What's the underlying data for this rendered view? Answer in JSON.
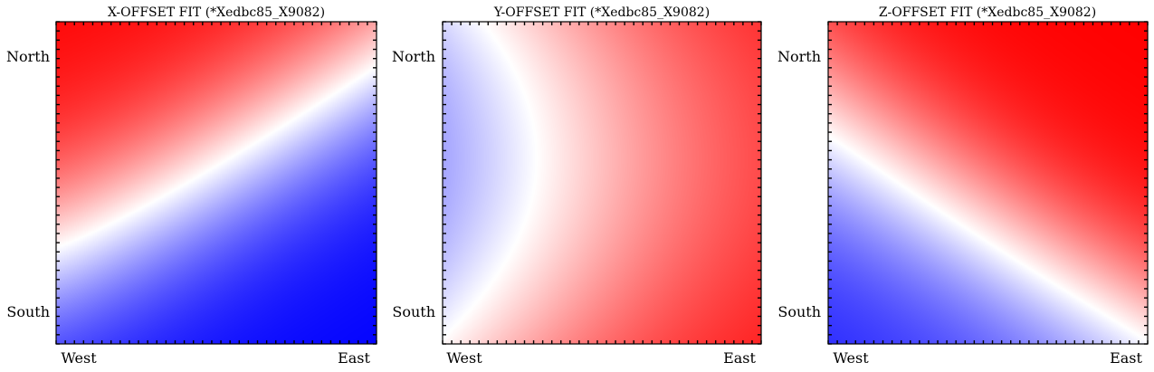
{
  "chart_data": [
    {
      "type": "heatmap",
      "title": "X-OFFSET FIT (*Xedbc85_X9082)",
      "x_tick_labels": [
        "West",
        "East"
      ],
      "y_tick_labels": [
        "North",
        "South"
      ],
      "colormap": "bwr",
      "colors": {
        "low": "#0000ff",
        "mid": "#ffffff",
        "high": "#ff0000"
      },
      "pattern": "high toward North-West, low toward South, zero-contour curving from mid-West to North-East",
      "grid": false
    },
    {
      "type": "heatmap",
      "title": "Y-OFFSET FIT (*Xedbc85_X9082)",
      "x_tick_labels": [
        "West",
        "East"
      ],
      "y_tick_labels": [
        "North",
        "South"
      ],
      "colormap": "bwr",
      "colors": {
        "low": "#0000ff",
        "mid": "#ffffff",
        "high": "#ff0000"
      },
      "pattern": "low toward West (centre-left), high toward South-East, curved zero-contour",
      "grid": false
    },
    {
      "type": "heatmap",
      "title": "Z-OFFSET FIT (*Xedbc85_X9082)",
      "x_tick_labels": [
        "West",
        "East"
      ],
      "y_tick_labels": [
        "North",
        "South"
      ],
      "colormap": "bwr",
      "colors": {
        "low": "#0000ff",
        "mid": "#ffffff",
        "high": "#ff0000"
      },
      "pattern": "high toward North-East, low toward South-West, concave zero-contour",
      "grid": false
    }
  ]
}
